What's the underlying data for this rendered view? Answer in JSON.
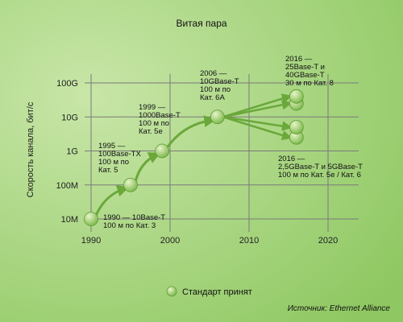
{
  "chart_data": {
    "type": "scatter",
    "title": "Витая пара",
    "ylabel": "Скорость канала, бит/с",
    "xlabel": "",
    "x_ticks": [
      1990,
      2000,
      2010,
      2020
    ],
    "y_ticks": [
      "10M",
      "100M",
      "1G",
      "10G",
      "100G"
    ],
    "y_scale": "log",
    "xlim": [
      1990,
      2022
    ],
    "grid": true,
    "points": [
      {
        "x": 1990,
        "y": "10M"
      },
      {
        "x": 1995,
        "y": "100M"
      },
      {
        "x": 1999,
        "y": "1G"
      },
      {
        "x": 2006,
        "y": "10G"
      },
      {
        "x": 2016,
        "y": "25G"
      },
      {
        "x": 2016,
        "y": "40G"
      },
      {
        "x": 2016,
        "y": "2.5G"
      },
      {
        "x": 2016,
        "y": "5G"
      }
    ],
    "annotations": [
      {
        "lines": [
          "1990 — 10Base-T",
          "100 м по Кат. 3"
        ]
      },
      {
        "lines": [
          "1995 —",
          "100Base-TX",
          "100 м по",
          "Кат. 5"
        ]
      },
      {
        "lines": [
          "1999 —",
          "1000Base-T",
          "100 м по",
          "Кат. 5е"
        ]
      },
      {
        "lines": [
          "2006 —",
          "10GBase-T",
          "100 м по",
          "Кат. 6А"
        ]
      },
      {
        "lines": [
          "2016 —",
          "25Base-T и",
          "40GBase-T",
          "30 м по Кат. 8"
        ]
      },
      {
        "lines": [
          "2016 —",
          "2,5GBase-T и 5GBase-T",
          "100 м по Кат. 5е / Кат. 6"
        ]
      }
    ],
    "legend": {
      "label": "Стандарт принят",
      "position": "bottom-center"
    },
    "source": "Источник: Ethernet Alliance",
    "colors": {
      "background_light": "#c8e6a8",
      "background_dark": "#8fc862",
      "grid": "#7a7a7a",
      "marker_light": "#e6f5c8",
      "marker_dark": "#7ab648",
      "arrow": "#6aa83a"
    }
  }
}
